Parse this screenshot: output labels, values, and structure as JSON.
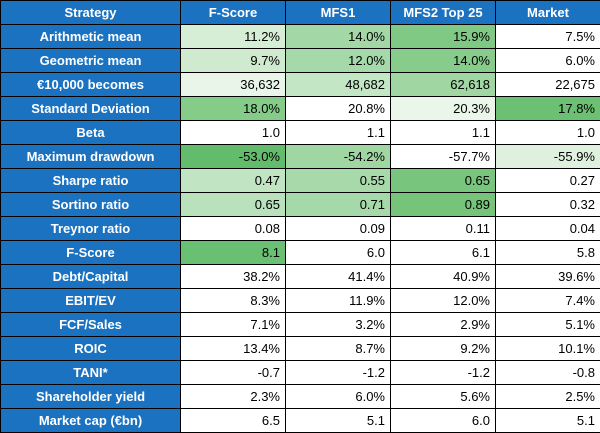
{
  "table": {
    "headers": [
      "Strategy",
      "F-Score",
      "MFS1",
      "MFS2 Top 25",
      "Market"
    ],
    "rows": [
      {
        "label": "Arithmetic mean",
        "values": [
          "11.2%",
          "14.0%",
          "15.9%",
          "7.5%"
        ],
        "colors": [
          "#d7eed6",
          "#a3d8a6",
          "#80c985",
          "#ffffff"
        ]
      },
      {
        "label": "Geometric mean",
        "values": [
          "9.7%",
          "12.0%",
          "14.0%",
          "6.0%"
        ],
        "colors": [
          "#cfeacf",
          "#a6d9a9",
          "#87cc8b",
          "#ffffff"
        ]
      },
      {
        "label": "€10,000 becomes",
        "values": [
          "36,632",
          "48,682",
          "62,618",
          "22,675"
        ],
        "colors": [
          "#e8f5e8",
          "#c3e6c4",
          "#9fd6a1",
          "#ffffff"
        ]
      },
      {
        "label": "Standard Deviation",
        "values": [
          "18.0%",
          "20.8%",
          "20.3%",
          "17.8%"
        ],
        "colors": [
          "#85cc89",
          "#ffffff",
          "#e9f6e9",
          "#6cc073"
        ]
      },
      {
        "label": "Beta",
        "values": [
          "1.0",
          "1.1",
          "1.1",
          "1.0"
        ],
        "colors": [
          "#ffffff",
          "#ffffff",
          "#ffffff",
          "#ffffff"
        ]
      },
      {
        "label": "Maximum drawdown",
        "values": [
          "-53.0%",
          "-54.2%",
          "-57.7%",
          "-55.9%"
        ],
        "colors": [
          "#63bc6b",
          "#9fd6a2",
          "#ffffff",
          "#dff0df"
        ]
      },
      {
        "label": "Sharpe ratio",
        "values": [
          "0.47",
          "0.55",
          "0.65",
          "0.27"
        ],
        "colors": [
          "#c1e5c2",
          "#a7d9aa",
          "#78c67d",
          "#ffffff"
        ]
      },
      {
        "label": "Sortino ratio",
        "values": [
          "0.65",
          "0.71",
          "0.89",
          "0.32"
        ],
        "colors": [
          "#b9e1bb",
          "#a6d9a9",
          "#75c47a",
          "#ffffff"
        ]
      },
      {
        "label": "Treynor ratio",
        "values": [
          "0.08",
          "0.09",
          "0.11",
          "0.04"
        ],
        "colors": [
          "#ffffff",
          "#ffffff",
          "#ffffff",
          "#ffffff"
        ]
      },
      {
        "label": "F-Score",
        "values": [
          "8.1",
          "6.0",
          "6.1",
          "5.8"
        ],
        "colors": [
          "#6ac072",
          "#ffffff",
          "#ffffff",
          "#ffffff"
        ]
      },
      {
        "label": "Debt/Capital",
        "values": [
          "38.2%",
          "41.4%",
          "40.9%",
          "39.6%"
        ],
        "colors": [
          "#ffffff",
          "#ffffff",
          "#ffffff",
          "#ffffff"
        ]
      },
      {
        "label": "EBIT/EV",
        "values": [
          "8.3%",
          "11.9%",
          "12.0%",
          "7.4%"
        ],
        "colors": [
          "#ffffff",
          "#ffffff",
          "#ffffff",
          "#ffffff"
        ]
      },
      {
        "label": "FCF/Sales",
        "values": [
          "7.1%",
          "3.2%",
          "2.9%",
          "5.1%"
        ],
        "colors": [
          "#ffffff",
          "#ffffff",
          "#ffffff",
          "#ffffff"
        ]
      },
      {
        "label": "ROIC",
        "values": [
          "13.4%",
          "8.7%",
          "9.2%",
          "10.1%"
        ],
        "colors": [
          "#ffffff",
          "#ffffff",
          "#ffffff",
          "#ffffff"
        ]
      },
      {
        "label": "TANI*",
        "values": [
          "-0.7",
          "-1.2",
          "-1.2",
          "-0.8"
        ],
        "colors": [
          "#ffffff",
          "#ffffff",
          "#ffffff",
          "#ffffff"
        ]
      },
      {
        "label": "Shareholder yield",
        "values": [
          "2.3%",
          "6.0%",
          "5.6%",
          "2.5%"
        ],
        "colors": [
          "#ffffff",
          "#ffffff",
          "#ffffff",
          "#ffffff"
        ]
      },
      {
        "label": "Market cap (€bn)",
        "values": [
          "6.5",
          "5.1",
          "6.0",
          "5.1"
        ],
        "colors": [
          "#ffffff",
          "#ffffff",
          "#ffffff",
          "#ffffff"
        ]
      }
    ]
  }
}
